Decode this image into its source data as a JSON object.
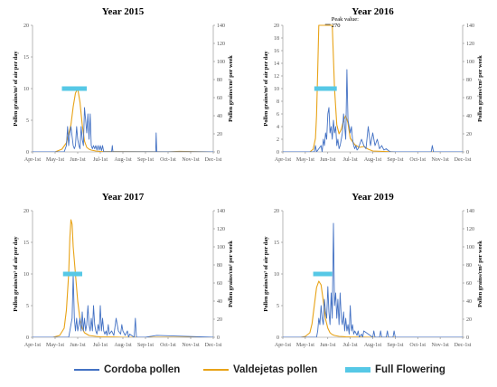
{
  "chart_data": [
    {
      "type": "line",
      "title": "Year 2015",
      "ylabel_left": "Pollen grains/m³ of air per day",
      "ylabel_right": "Pollen grains/cm² per week",
      "ylim_left": [
        0,
        20
      ],
      "ylim_right": [
        0,
        140
      ],
      "yticks_left": [
        "0",
        "5",
        "10",
        "15",
        "20"
      ],
      "yticks_right": [
        "0",
        "20",
        "40",
        "60",
        "80",
        "100",
        "120",
        "140"
      ],
      "categories": [
        "Apr-1st",
        "May-1st",
        "Jun-1st",
        "Jul-1st",
        "Aug-1st",
        "Sep-1st",
        "Oct-1st",
        "Nov-1st",
        "Dec-1st"
      ],
      "annotation": "",
      "full_flowering": [
        1.3,
        2.4
      ],
      "full_flowering_level": 10,
      "series": [
        {
          "name": "Cordoba pollen",
          "axis": "left",
          "x": [
            0,
            1.0,
            1.4,
            1.5,
            1.55,
            1.6,
            1.65,
            1.7,
            1.8,
            1.85,
            1.9,
            1.95,
            2.0,
            2.05,
            2.1,
            2.15,
            2.2,
            2.25,
            2.3,
            2.35,
            2.4,
            2.45,
            2.5,
            2.55,
            2.6,
            2.65,
            2.7,
            2.75,
            2.8,
            2.85,
            2.9,
            2.95,
            3.0,
            3.05,
            3.1,
            3.15,
            3.5,
            3.53,
            3.56,
            5.0,
            5.45,
            5.47,
            5.5,
            6.5,
            8.0
          ],
          "y": [
            0,
            0,
            0,
            1,
            4,
            1,
            3,
            4,
            1,
            0.5,
            1,
            4,
            2,
            1,
            0.5,
            4,
            2,
            1,
            7,
            5,
            3,
            6,
            2,
            6,
            1,
            0.5,
            1,
            0.5,
            1,
            0.3,
            1,
            0.3,
            1,
            0.2,
            1,
            0,
            0,
            1,
            0,
            0,
            0,
            3,
            0,
            0,
            0
          ]
        },
        {
          "name": "Valdejetas pollen",
          "axis": "right",
          "x": [
            0,
            1.0,
            1.3,
            1.5,
            1.7,
            1.8,
            1.9,
            2.0,
            2.1,
            2.2,
            2.3,
            2.4,
            2.5,
            2.6,
            2.8,
            3.0,
            3.5,
            5.0,
            6.0,
            6.5,
            8.0
          ],
          "y": [
            0,
            0,
            3,
            10,
            30,
            50,
            65,
            70,
            55,
            30,
            12,
            5,
            3,
            2,
            1,
            0.5,
            0.3,
            0.2,
            0.1,
            0.6,
            0
          ]
        }
      ]
    },
    {
      "type": "line",
      "title": "Year 2016",
      "ylabel_left": "Pollen grains/m³ of air per day",
      "ylabel_right": "Pollen grains/cm² per week",
      "ylim_left": [
        0,
        20
      ],
      "ylim_right": [
        0,
        140
      ],
      "yticks_left": [
        "0",
        "2",
        "4",
        "6",
        "8",
        "10",
        "12",
        "14",
        "16",
        "18",
        "20"
      ],
      "yticks_right": [
        "0",
        "20",
        "40",
        "60",
        "80",
        "100",
        "120",
        "140"
      ],
      "categories": [
        "Apr-1st",
        "May-1st",
        "Jun-1st",
        "Jul-1st",
        "Aug-1st",
        "Sep-1st",
        "Oct-1st",
        "Nov-1st",
        "Dec-1st"
      ],
      "annotation": "Peak value: 270",
      "peak_value": 270,
      "full_flowering": [
        1.4,
        2.4
      ],
      "full_flowering_level": 10,
      "series": [
        {
          "name": "Cordoba pollen",
          "axis": "left",
          "x": [
            0,
            1.4,
            1.45,
            1.5,
            1.7,
            1.75,
            1.8,
            1.85,
            1.9,
            1.95,
            2.0,
            2.05,
            2.1,
            2.15,
            2.2,
            2.25,
            2.3,
            2.35,
            2.4,
            2.45,
            2.5,
            2.55,
            2.6,
            2.65,
            2.7,
            2.75,
            2.8,
            2.85,
            2.9,
            2.95,
            3.0,
            3.05,
            3.1,
            3.15,
            3.2,
            3.25,
            3.3,
            3.35,
            3.4,
            3.5,
            3.6,
            3.7,
            3.8,
            3.9,
            4.0,
            4.1,
            4.2,
            4.3,
            4.4,
            4.5,
            4.6,
            4.7,
            4.8,
            5.0,
            6.6,
            6.65,
            6.7,
            8.0
          ],
          "y": [
            0,
            0,
            1,
            0,
            1,
            0,
            2,
            1,
            3,
            2,
            6,
            7,
            3,
            4,
            2,
            5,
            3,
            4,
            1,
            2,
            0.5,
            1,
            2,
            3,
            6,
            4,
            2,
            13,
            5,
            4,
            3,
            4,
            2,
            1,
            0.5,
            1,
            0.3,
            0.5,
            1,
            2,
            1,
            0.5,
            4,
            1,
            3,
            1,
            2,
            0.5,
            1,
            0.3,
            0.5,
            0.2,
            0,
            0,
            0,
            1,
            0,
            0
          ]
        },
        {
          "name": "Valdejetas pollen",
          "axis": "right",
          "x": [
            0,
            1.2,
            1.35,
            1.45,
            1.5,
            1.55,
            1.6,
            1.7,
            2.2,
            2.3,
            2.4,
            2.5,
            2.6,
            2.7,
            2.8,
            2.9,
            3.0,
            3.2,
            3.4,
            3.6,
            3.8,
            4.0,
            5.0,
            8.0
          ],
          "y": [
            0,
            0,
            3,
            15,
            40,
            90,
            140,
            140,
            140,
            70,
            30,
            20,
            25,
            35,
            40,
            32,
            15,
            8,
            5,
            6,
            3,
            1,
            0,
            0
          ]
        }
      ]
    },
    {
      "type": "line",
      "title": "Year 2017",
      "ylabel_left": "Pollen grains/m³ of air per day",
      "ylabel_right": "Pollen grains/cm² per week",
      "ylim_left": [
        0,
        20
      ],
      "ylim_right": [
        0,
        140
      ],
      "yticks_left": [
        "0",
        "5",
        "10",
        "15",
        "20"
      ],
      "yticks_right": [
        "0",
        "20",
        "40",
        "60",
        "80",
        "100",
        "120",
        "140"
      ],
      "categories": [
        "Apr-1st",
        "May-1st",
        "Jun-1st",
        "Jul-1st",
        "Aug-1st",
        "Sep-1st",
        "Oct-1st",
        "Nov-1st",
        "Dec-1st"
      ],
      "annotation": "",
      "full_flowering": [
        1.35,
        2.2
      ],
      "full_flowering_level": 10,
      "series": [
        {
          "name": "Cordoba pollen",
          "axis": "left",
          "x": [
            0,
            1.6,
            1.65,
            1.7,
            1.75,
            1.8,
            1.85,
            1.9,
            1.95,
            2.0,
            2.05,
            2.1,
            2.15,
            2.2,
            2.25,
            2.3,
            2.35,
            2.4,
            2.45,
            2.5,
            2.55,
            2.6,
            2.65,
            2.7,
            2.75,
            2.8,
            2.85,
            2.9,
            2.95,
            3.0,
            3.05,
            3.1,
            3.15,
            3.2,
            3.25,
            3.3,
            3.35,
            3.4,
            3.5,
            3.6,
            3.7,
            3.8,
            3.9,
            3.95,
            4.0,
            4.1,
            4.2,
            4.25,
            4.3,
            4.5,
            4.55,
            4.6,
            5.0,
            5.5,
            8.0
          ],
          "y": [
            0,
            0,
            1,
            2,
            3,
            10,
            3,
            1,
            3,
            1,
            2,
            3,
            1,
            4,
            1,
            3,
            1,
            2,
            5,
            2,
            1,
            3,
            1,
            5,
            2,
            1,
            0.5,
            2,
            1,
            5,
            1,
            3,
            1,
            0.5,
            1,
            0.3,
            2,
            0.5,
            1,
            0.3,
            3,
            1,
            0.5,
            2,
            1,
            0.3,
            1,
            0,
            0.5,
            0,
            3,
            0,
            0,
            0.3,
            0
          ]
        },
        {
          "name": "Valdejetas pollen",
          "axis": "right",
          "x": [
            0,
            0.9,
            1.2,
            1.4,
            1.5,
            1.6,
            1.65,
            1.7,
            1.75,
            1.8,
            1.9,
            2.0,
            2.1,
            2.2,
            2.3,
            2.5,
            2.8,
            3.0,
            4.0,
            8.0
          ],
          "y": [
            0,
            0,
            2,
            10,
            30,
            70,
            110,
            130,
            125,
            100,
            70,
            40,
            20,
            10,
            5,
            2,
            1,
            0.5,
            0,
            0
          ]
        }
      ]
    },
    {
      "type": "line",
      "title": "Year 2019",
      "ylabel_left": "Pollen grains/m³ of air per day",
      "ylabel_right": "Pollen grains/cm² per week",
      "ylim_left": [
        0,
        20
      ],
      "ylim_right": [
        0,
        140
      ],
      "yticks_left": [
        "0",
        "5",
        "10",
        "15",
        "20"
      ],
      "yticks_right": [
        "0",
        "20",
        "40",
        "60",
        "80",
        "100",
        "120",
        "140"
      ],
      "categories": [
        "Apr-1st",
        "May-1st",
        "Jun-1st",
        "Jul-1st",
        "Aug-1st",
        "Sep-1st",
        "Oct-1st",
        "Nov-1st",
        "Dec-1st"
      ],
      "annotation": "",
      "full_flowering": [
        1.35,
        2.2
      ],
      "full_flowering_level": 10,
      "series": [
        {
          "name": "Cordoba pollen",
          "axis": "left",
          "x": [
            0,
            1.5,
            1.55,
            1.6,
            1.65,
            1.7,
            1.75,
            1.8,
            1.85,
            1.9,
            1.95,
            2.0,
            2.05,
            2.1,
            2.15,
            2.2,
            2.25,
            2.3,
            2.35,
            2.4,
            2.45,
            2.5,
            2.55,
            2.6,
            2.65,
            2.7,
            2.75,
            2.8,
            2.85,
            2.9,
            2.95,
            3.0,
            3.05,
            3.1,
            3.15,
            3.2,
            3.3,
            3.35,
            3.4,
            3.5,
            3.55,
            3.6,
            4.0,
            4.05,
            4.1,
            4.3,
            4.35,
            4.4,
            4.6,
            4.65,
            4.7,
            4.9,
            4.95,
            5.0,
            8.0
          ],
          "y": [
            0,
            0,
            1,
            3,
            2,
            5,
            3,
            2,
            6,
            4,
            3,
            8,
            4,
            2,
            7,
            3,
            18,
            5,
            7,
            3,
            6,
            2,
            7,
            3,
            2,
            4,
            1,
            3,
            1,
            2,
            0.5,
            5,
            1,
            2,
            0.5,
            1,
            0.3,
            1,
            0,
            0.5,
            0,
            1,
            0,
            1,
            0,
            0,
            1,
            0,
            0,
            1,
            0,
            0,
            1,
            0,
            0
          ]
        },
        {
          "name": "Valdejetas pollen",
          "axis": "right",
          "x": [
            0,
            0.8,
            1.0,
            1.2,
            1.3,
            1.4,
            1.5,
            1.6,
            1.7,
            1.8,
            1.9,
            2.0,
            2.1,
            2.2,
            2.3,
            2.5,
            2.8,
            3.0,
            4.0,
            8.0
          ],
          "y": [
            0,
            0,
            1,
            5,
            15,
            35,
            55,
            62,
            58,
            40,
            20,
            10,
            5,
            3,
            2,
            1,
            0.5,
            0.3,
            0,
            0
          ]
        }
      ]
    }
  ],
  "legend": {
    "items": [
      {
        "label": "Cordoba pollen",
        "color": "#4472C4"
      },
      {
        "label": "Valdejetas pollen",
        "color": "#E8A317"
      },
      {
        "label": "Full Flowering",
        "color": "#56C8E6"
      }
    ]
  },
  "colors": {
    "cordoba": "#4472C4",
    "valdejetas": "#E8A317",
    "flowering": "#56C8E6",
    "axis": "#888888"
  }
}
